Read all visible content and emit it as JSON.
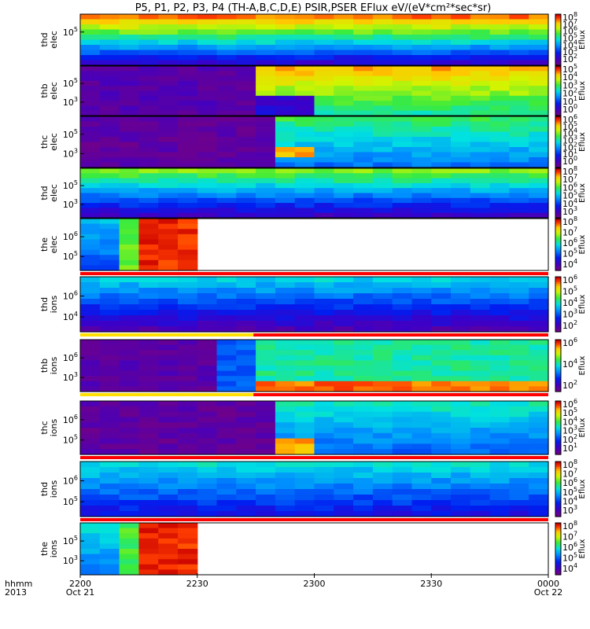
{
  "chart_data": {
    "type": "heatmap",
    "title": "P5, P1, P2, P3, P4 (TH-A,B,C,D,E) PSIR,PSER EFlux eV/(eV*cm²*sec*sr)",
    "x_axis": {
      "corner_labels": [
        "hhmm",
        "2013"
      ],
      "ticks": [
        {
          "hhmm": "2200",
          "date": "Oct 21"
        },
        {
          "hhmm": "2230",
          "date": ""
        },
        {
          "hhmm": "2300",
          "date": ""
        },
        {
          "hhmm": "2330",
          "date": ""
        },
        {
          "hhmm": "0000",
          "date": "Oct 22"
        }
      ]
    },
    "colorbar_label": "Eflux",
    "panels": [
      {
        "label": [
          "thd",
          "elec"
        ],
        "probe": "thd",
        "species": "elec",
        "yticks": [
          "10^5"
        ],
        "colorbar": [
          "10^8",
          "10^7",
          "10^6",
          "10^5",
          "10^4",
          "10^3",
          "10^2"
        ],
        "flag_bar": "none"
      },
      {
        "label": [
          "thb",
          "elec"
        ],
        "probe": "thb",
        "species": "elec",
        "yticks": [
          "10^5",
          "10^3"
        ],
        "colorbar": [
          "10^5",
          "10^4",
          "10^3",
          "10^2",
          "10^1",
          "10^0"
        ],
        "flag_bar": "none"
      },
      {
        "label": [
          "thc",
          "elec"
        ],
        "probe": "thc",
        "species": "elec",
        "yticks": [
          "10^5",
          "10^3"
        ],
        "colorbar": [
          "10^6",
          "10^5",
          "10^4",
          "10^3",
          "10^2",
          "10^1",
          "10^0"
        ],
        "flag_bar": "none"
      },
      {
        "label": [
          "thd",
          "elec"
        ],
        "probe": "thd",
        "species": "elec",
        "yticks": [
          "10^5",
          "10^3"
        ],
        "colorbar": [
          "10^8",
          "10^7",
          "10^6",
          "10^5",
          "10^4",
          "10^3"
        ],
        "flag_bar": "none"
      },
      {
        "label": [
          "the",
          "elec"
        ],
        "probe": "the",
        "species": "elec",
        "yticks": [
          "10^6",
          "10^5"
        ],
        "colorbar": [
          "10^8",
          "10^7",
          "10^6",
          "10^5",
          "10^4"
        ],
        "flag_bar": "red"
      },
      {
        "label": [
          "thd",
          "ions"
        ],
        "probe": "thd",
        "species": "ions",
        "yticks": [
          "10^6",
          "10^4"
        ],
        "colorbar": [
          "10^6",
          "10^5",
          "10^4",
          "10^3",
          "10^2"
        ],
        "flag_bar": "yellow-red"
      },
      {
        "label": [
          "thb",
          "ions"
        ],
        "probe": "thb",
        "species": "ions",
        "yticks": [
          "10^6",
          "10^3"
        ],
        "colorbar": [
          "10^6",
          "10^4",
          "10^2"
        ],
        "flag_bar": "yellow-red"
      },
      {
        "label": [
          "thc",
          "ions"
        ],
        "probe": "thc",
        "species": "ions",
        "yticks": [
          "10^6",
          "10^5"
        ],
        "colorbar": [
          "10^6",
          "10^5",
          "10^4",
          "10^3",
          "10^2",
          "10^1"
        ],
        "flag_bar": "red"
      },
      {
        "label": [
          "thd",
          "ions"
        ],
        "probe": "thd",
        "species": "ions",
        "yticks": [
          "10^6",
          "10^5"
        ],
        "colorbar": [
          "10^8",
          "10^7",
          "10^6",
          "10^5",
          "10^4",
          "10^3"
        ],
        "flag_bar": "red"
      },
      {
        "label": [
          "the",
          "ions"
        ],
        "probe": "the",
        "species": "ions",
        "yticks": [
          "10^5",
          "10^3"
        ],
        "colorbar": [
          "10^8",
          "10^7",
          "10^6",
          "10^5",
          "10^4"
        ],
        "flag_bar": "none"
      }
    ]
  }
}
